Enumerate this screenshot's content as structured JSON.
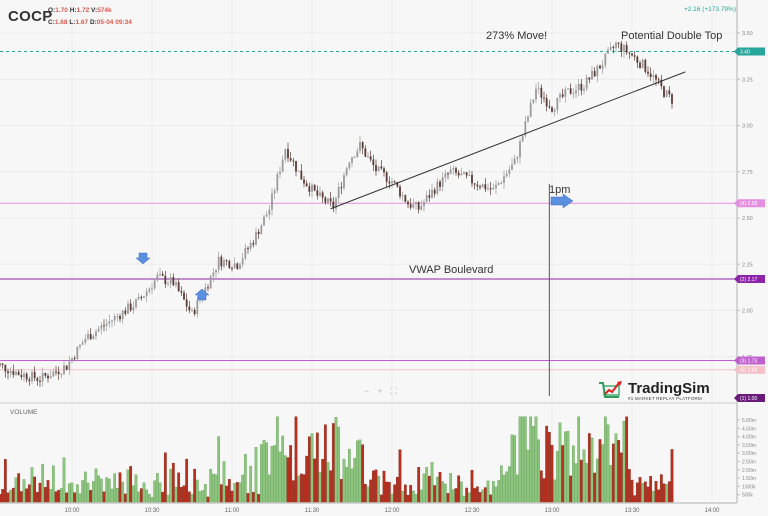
{
  "header": {
    "symbol": "COCP",
    "ohlc": {
      "o_label": "O:",
      "o_value": "1.70",
      "h_label": "H:",
      "h_value": "1.72",
      "v_label": "V:",
      "v_value": "574k",
      "c_label": "C:",
      "c_value": "1.68",
      "l_label": "L:",
      "l_value": "1.67",
      "d_label": "D:",
      "d_value": "05-04 09:34"
    },
    "change": "+2.16 (+173.79%)"
  },
  "annotations": {
    "move": "273% Move!",
    "double_top": "Potential Double Top",
    "vwap": "VWAP Boulevard",
    "one_pm": "1pm"
  },
  "volume_label": "VOLUME",
  "zoom_controls": {
    "minus": "−",
    "plus": "+",
    "fit": "⛶"
  },
  "logo": {
    "name": "TradingSim",
    "tagline": "#1 MARKET REPLAY PLATFORM"
  },
  "colors": {
    "up_candle": "#9a9a9a",
    "down_candle": "#5a3a32",
    "vol_up": "#8dc47e",
    "vol_down": "#b5301e",
    "price_line": "#26a69a",
    "level_pink": "#e58fe0",
    "level_purple": "#8e24aa",
    "arrow_blue": "#5b8fe0"
  },
  "chart_data": {
    "type": "candlestick",
    "title": "COCP",
    "xlabel": "",
    "ylabel": "",
    "price_axis": {
      "ticks": [
        "3.50",
        "3.25",
        "3.00",
        "2.75",
        "2.50",
        "2.25",
        "2.00",
        "1.75"
      ],
      "ylim": [
        1.62,
        3.62
      ]
    },
    "time_axis": {
      "ticks": [
        "10:00",
        "10:30",
        "11:00",
        "11:30",
        "12:00",
        "12:30",
        "13:00",
        "13:30",
        "14:00"
      ]
    },
    "volume_axis": {
      "ticks": [
        "5.00m",
        "4.50m",
        "4.00m",
        "3.50m",
        "3.00m",
        "2.50m",
        "2.00m",
        "1.50m",
        "1000k",
        "500k"
      ]
    },
    "price_labels": [
      {
        "label": "3.40",
        "value": 3.4,
        "color": "#26a69a",
        "style": "last-price"
      },
      {
        "label": "(4) 2.58",
        "value": 2.58,
        "color": "#e58fe0"
      },
      {
        "label": "(2) 2.17",
        "value": 2.17,
        "color": "#8e24aa"
      },
      {
        "label": "(3) 1.73",
        "value": 1.73,
        "color": "#c060d0"
      },
      {
        "label": "(5) 1.68",
        "value": 1.68,
        "color": "#f5c0c8"
      },
      {
        "label": "(1) 1.00",
        "value": 1.0,
        "color": "#6a1b7a"
      }
    ],
    "horizontal_levels": [
      {
        "value": 3.4,
        "color": "#26a69a",
        "style": "dashed"
      },
      {
        "value": 2.58,
        "color": "#e58fe0",
        "style": "solid"
      },
      {
        "value": 2.17,
        "color": "#8e24aa",
        "style": "solid"
      },
      {
        "value": 1.73,
        "color": "#c060d0",
        "style": "solid"
      },
      {
        "value": 1.68,
        "color": "#f5c0c8",
        "style": "solid"
      }
    ],
    "trendlines": [
      {
        "from": {
          "time": "11:37",
          "price": 2.55
        },
        "to": {
          "time": "13:50",
          "price": 3.29
        }
      }
    ],
    "vertical_marker": {
      "time": "12:59",
      "label": "1pm"
    },
    "arrows": [
      {
        "direction": "down",
        "time": "10:28",
        "price": 2.28
      },
      {
        "direction": "up",
        "time": "10:47",
        "price": 2.1
      },
      {
        "direction": "right",
        "time": "13:06",
        "price": 2.63
      }
    ],
    "summary": {
      "open_price": 1.7,
      "day_low": 1.64,
      "morning_high_1": 2.89,
      "morning_high_2": 2.88,
      "session_high": 3.45,
      "last_price": 3.4,
      "change": "+2.16 (+173.79%)"
    },
    "series": [
      {
        "name": "close_approx",
        "times": [
          "09:35",
          "09:45",
          "09:55",
          "10:05",
          "10:15",
          "10:25",
          "10:35",
          "10:45",
          "10:55",
          "11:05",
          "11:15",
          "11:25",
          "11:35",
          "11:45",
          "11:55",
          "12:05",
          "12:15",
          "12:25",
          "12:35",
          "12:45",
          "12:55",
          "13:05",
          "13:15",
          "13:25",
          "13:35",
          "13:45"
        ],
        "values": [
          1.7,
          1.66,
          1.65,
          1.82,
          1.95,
          2.12,
          2.02,
          2.22,
          2.35,
          2.83,
          2.62,
          2.85,
          2.63,
          2.58,
          2.68,
          2.66,
          2.85,
          3.2,
          3.42,
          3.25,
          3.15,
          3.18,
          3.12,
          3.1,
          3.28,
          3.4
        ]
      }
    ]
  }
}
